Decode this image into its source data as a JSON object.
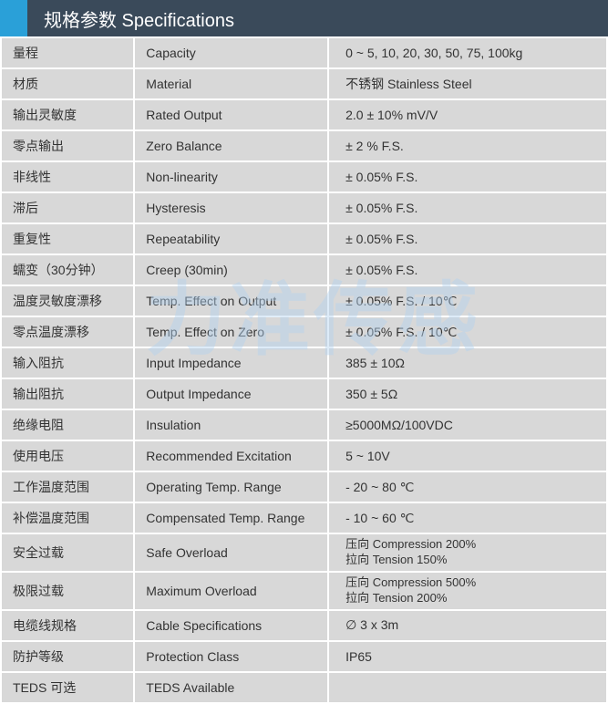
{
  "header": {
    "title": "规格参数 Specifications"
  },
  "watermark": "力准传感",
  "table": {
    "type": "table",
    "background_color": "#d8d8d8",
    "border_color": "#ffffff",
    "header_bg": "#3a4a5a",
    "accent_block": "#2aa0d8",
    "text_color": "#333333",
    "col_widths_pct": [
      22,
      32,
      46
    ],
    "rows": [
      {
        "c1": "量程",
        "c2": "Capacity",
        "c3": "0 ~ 5, 10, 20, 30, 50, 75, 100kg"
      },
      {
        "c1": "材质",
        "c2": "Material",
        "c3": "不锈钢 Stainless Steel"
      },
      {
        "c1": "输出灵敏度",
        "c2": "Rated Output",
        "c3": "2.0 ± 10% mV/V"
      },
      {
        "c1": "零点输出",
        "c2": "Zero Balance",
        "c3": "± 2 % F.S."
      },
      {
        "c1": "非线性",
        "c2": "Non-linearity",
        "c3": "± 0.05% F.S."
      },
      {
        "c1": "滞后",
        "c2": "Hysteresis",
        "c3": "± 0.05% F.S."
      },
      {
        "c1": "重复性",
        "c2": "Repeatability",
        "c3": "± 0.05% F.S."
      },
      {
        "c1": "蠕变（30分钟）",
        "c2": "Creep (30min)",
        "c3": "± 0.05% F.S."
      },
      {
        "c1": "温度灵敏度漂移",
        "c2": "Temp. Effect on Output",
        "c3": "± 0.05% F.S. / 10℃"
      },
      {
        "c1": "零点温度漂移",
        "c2": "Temp. Effect on Zero",
        "c3": "± 0.05% F.S. / 10℃"
      },
      {
        "c1": "输入阻抗",
        "c2": "Input Impedance",
        "c3": "385 ± 10Ω"
      },
      {
        "c1": "输出阻抗",
        "c2": "Output Impedance",
        "c3": "350 ± 5Ω"
      },
      {
        "c1": "绝缘电阻",
        "c2": "Insulation",
        "c3": "≥5000MΩ/100VDC"
      },
      {
        "c1": "使用电压",
        "c2": "Recommended Excitation",
        "c3": "5 ~ 10V"
      },
      {
        "c1": "工作温度范围",
        "c2": "Operating Temp. Range",
        "c3": "- 20 ~ 80 ℃"
      },
      {
        "c1": "补偿温度范围",
        "c2": "Compensated Temp. Range",
        "c3": "- 10 ~ 60 ℃"
      },
      {
        "c1": "安全过载",
        "c2": "Safe Overload",
        "c3a": "压向 Compression 200%",
        "c3b": "拉向 Tension 150%",
        "multi": true
      },
      {
        "c1": "极限过载",
        "c2": "Maximum Overload",
        "c3a": "压向 Compression 500%",
        "c3b": "拉向 Tension 200%",
        "multi": true
      },
      {
        "c1": "电缆线规格",
        "c2": "Cable Specifications",
        "c3": "∅ 3 x 3m"
      },
      {
        "c1": "防护等级",
        "c2": "Protection Class",
        "c3": "IP65"
      },
      {
        "c1": "TEDS 可选",
        "c2": "TEDS Available",
        "c3": ""
      }
    ]
  }
}
